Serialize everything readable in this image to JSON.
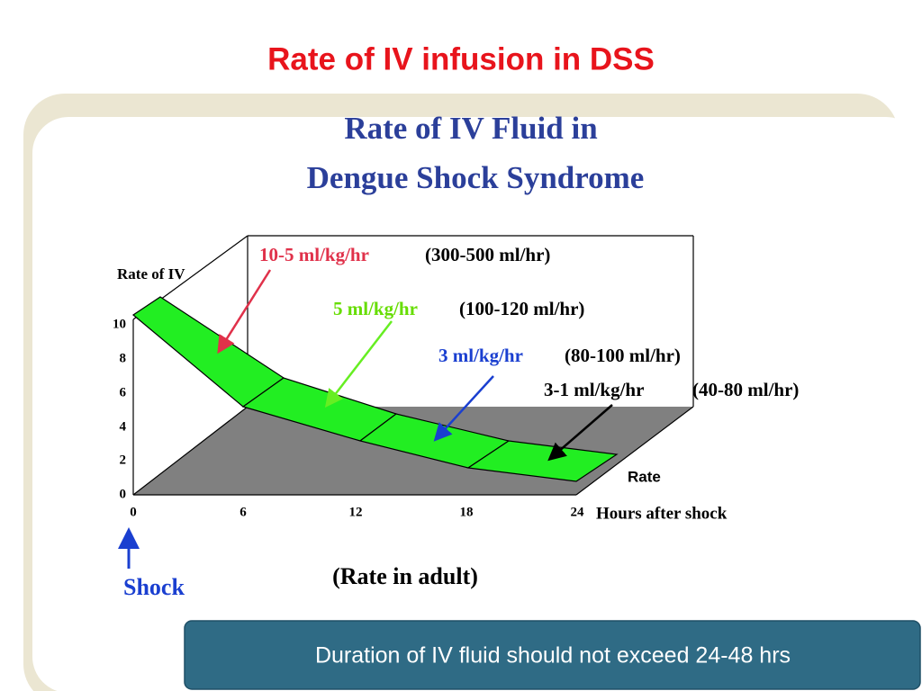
{
  "slide": {
    "title": "Rate of IV infusion in DSS",
    "figure": {
      "title_lines": [
        "Rate of IV Fluid in",
        "Dengue Shock Syndrome"
      ],
      "y_axis_label": "Rate of IV",
      "y_ticks": [
        10,
        8,
        6,
        4,
        2,
        0
      ],
      "x_ticks": [
        0,
        6,
        12,
        18,
        24
      ],
      "x_axis_label": "Hours after shock",
      "depth_label": "Rate",
      "annotations": [
        {
          "dose": "10-5 ml/kg/hr",
          "volume": "(300-500 ml/hr)"
        },
        {
          "dose": "5 ml/kg/hr",
          "volume": "(100-120 ml/hr)"
        },
        {
          "dose": "3 ml/kg/hr",
          "volume": "(80-100 ml/hr)"
        },
        {
          "dose": "3-1 ml/kg/hr",
          "volume": "(40-80 ml/hr)"
        }
      ],
      "marker": "Shock",
      "caption": "(Rate in adult)"
    },
    "note": "Duration of IV fluid should not exceed 24-48 hrs"
  }
}
